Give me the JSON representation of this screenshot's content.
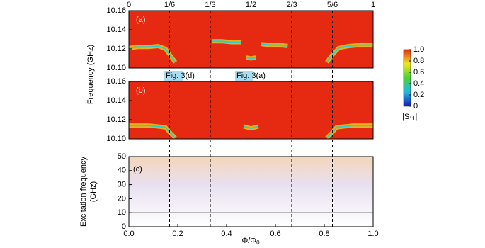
{
  "chart_data": [
    {
      "type": "heatmap-line",
      "panel_label": "(a)",
      "color": "#2ad0c8",
      "background": "#e62a12",
      "x": [
        0,
        0.04,
        0.08,
        0.12,
        0.15,
        0.17,
        0.19,
        null,
        0.34,
        0.38,
        0.42,
        0.46,
        null,
        0.48,
        0.5,
        0.52,
        null,
        0.54,
        0.58,
        0.62,
        0.65,
        null,
        0.81,
        0.83,
        0.86,
        0.9,
        0.95,
        1.0
      ],
      "values": [
        10.121,
        10.122,
        10.122,
        10.123,
        10.12,
        10.113,
        10.106,
        null,
        10.128,
        10.128,
        10.127,
        10.127,
        null,
        10.111,
        10.11,
        10.111,
        null,
        10.125,
        10.124,
        10.124,
        10.123,
        null,
        10.106,
        10.113,
        10.121,
        10.123,
        10.124,
        10.124
      ],
      "xlim": [
        0,
        1
      ],
      "ylim": [
        10.1,
        10.16
      ],
      "yticks": [
        {
          "value": 10.1,
          "label": "10.10"
        },
        10.12,
        10.14,
        10.16
      ],
      "top_ticks": [
        {
          "value": 0,
          "label": "0"
        },
        {
          "value": 0.16667,
          "label": "1/6"
        },
        {
          "value": 0.33333,
          "label": "1/3"
        },
        {
          "value": 0.5,
          "label": "1/2"
        },
        {
          "value": 0.66667,
          "label": "2/3"
        },
        {
          "value": 0.83333,
          "label": "5/6"
        },
        {
          "value": 1,
          "label": "1"
        }
      ]
    },
    {
      "type": "heatmap-line",
      "panel_label": "(b)",
      "color": "#2ad0c8",
      "background": "#e62a12",
      "x": [
        0,
        0.04,
        0.08,
        0.12,
        0.15,
        0.17,
        0.19,
        null,
        0.47,
        0.5,
        0.53,
        null,
        0.81,
        0.83,
        0.85,
        0.88,
        0.92,
        0.96,
        1.0
      ],
      "values": [
        10.114,
        10.114,
        10.114,
        10.113,
        10.112,
        10.106,
        10.101,
        null,
        10.113,
        10.111,
        10.113,
        null,
        10.101,
        10.106,
        10.112,
        10.113,
        10.114,
        10.114,
        10.114
      ],
      "xlim": [
        0,
        1
      ],
      "ylim": [
        10.1,
        10.16
      ],
      "yticks": [
        {
          "value": 10.1,
          "label": "10.10"
        },
        10.12,
        10.14,
        10.16
      ],
      "annotations": [
        "Fig. 3(d)",
        "Fig. 3(a)"
      ],
      "ylabel": "Frequency (GHz)"
    },
    {
      "type": "spectrum",
      "panel_label": "(c)",
      "hline": 10,
      "xlim": [
        0,
        1
      ],
      "ylim": [
        0,
        50
      ],
      "yticks": [
        0,
        10,
        20,
        30,
        40,
        50
      ],
      "xticks": [
        {
          "value": 0,
          "label": "0.0"
        },
        0.2,
        0.4,
        0.6,
        0.8,
        {
          "value": 1,
          "label": "1.0"
        }
      ],
      "ylabel": [
        "Excitation frequency",
        "(GHz)"
      ],
      "xlabel": "Φ/Φ",
      "xlabel_sub": "0"
    },
    {
      "type": "colorbar",
      "ylim": [
        0,
        1
      ],
      "yticks": [
        0,
        0.2,
        0.4,
        0.6,
        0.8,
        {
          "value": 1,
          "label": "1.0"
        }
      ],
      "colors": [
        "#1a1ab4",
        "#22b8e8",
        "#4ad23a",
        "#f0e81e",
        "#e62a12"
      ],
      "label": "|S",
      "label_sub": "11",
      "label_end": "|"
    }
  ]
}
